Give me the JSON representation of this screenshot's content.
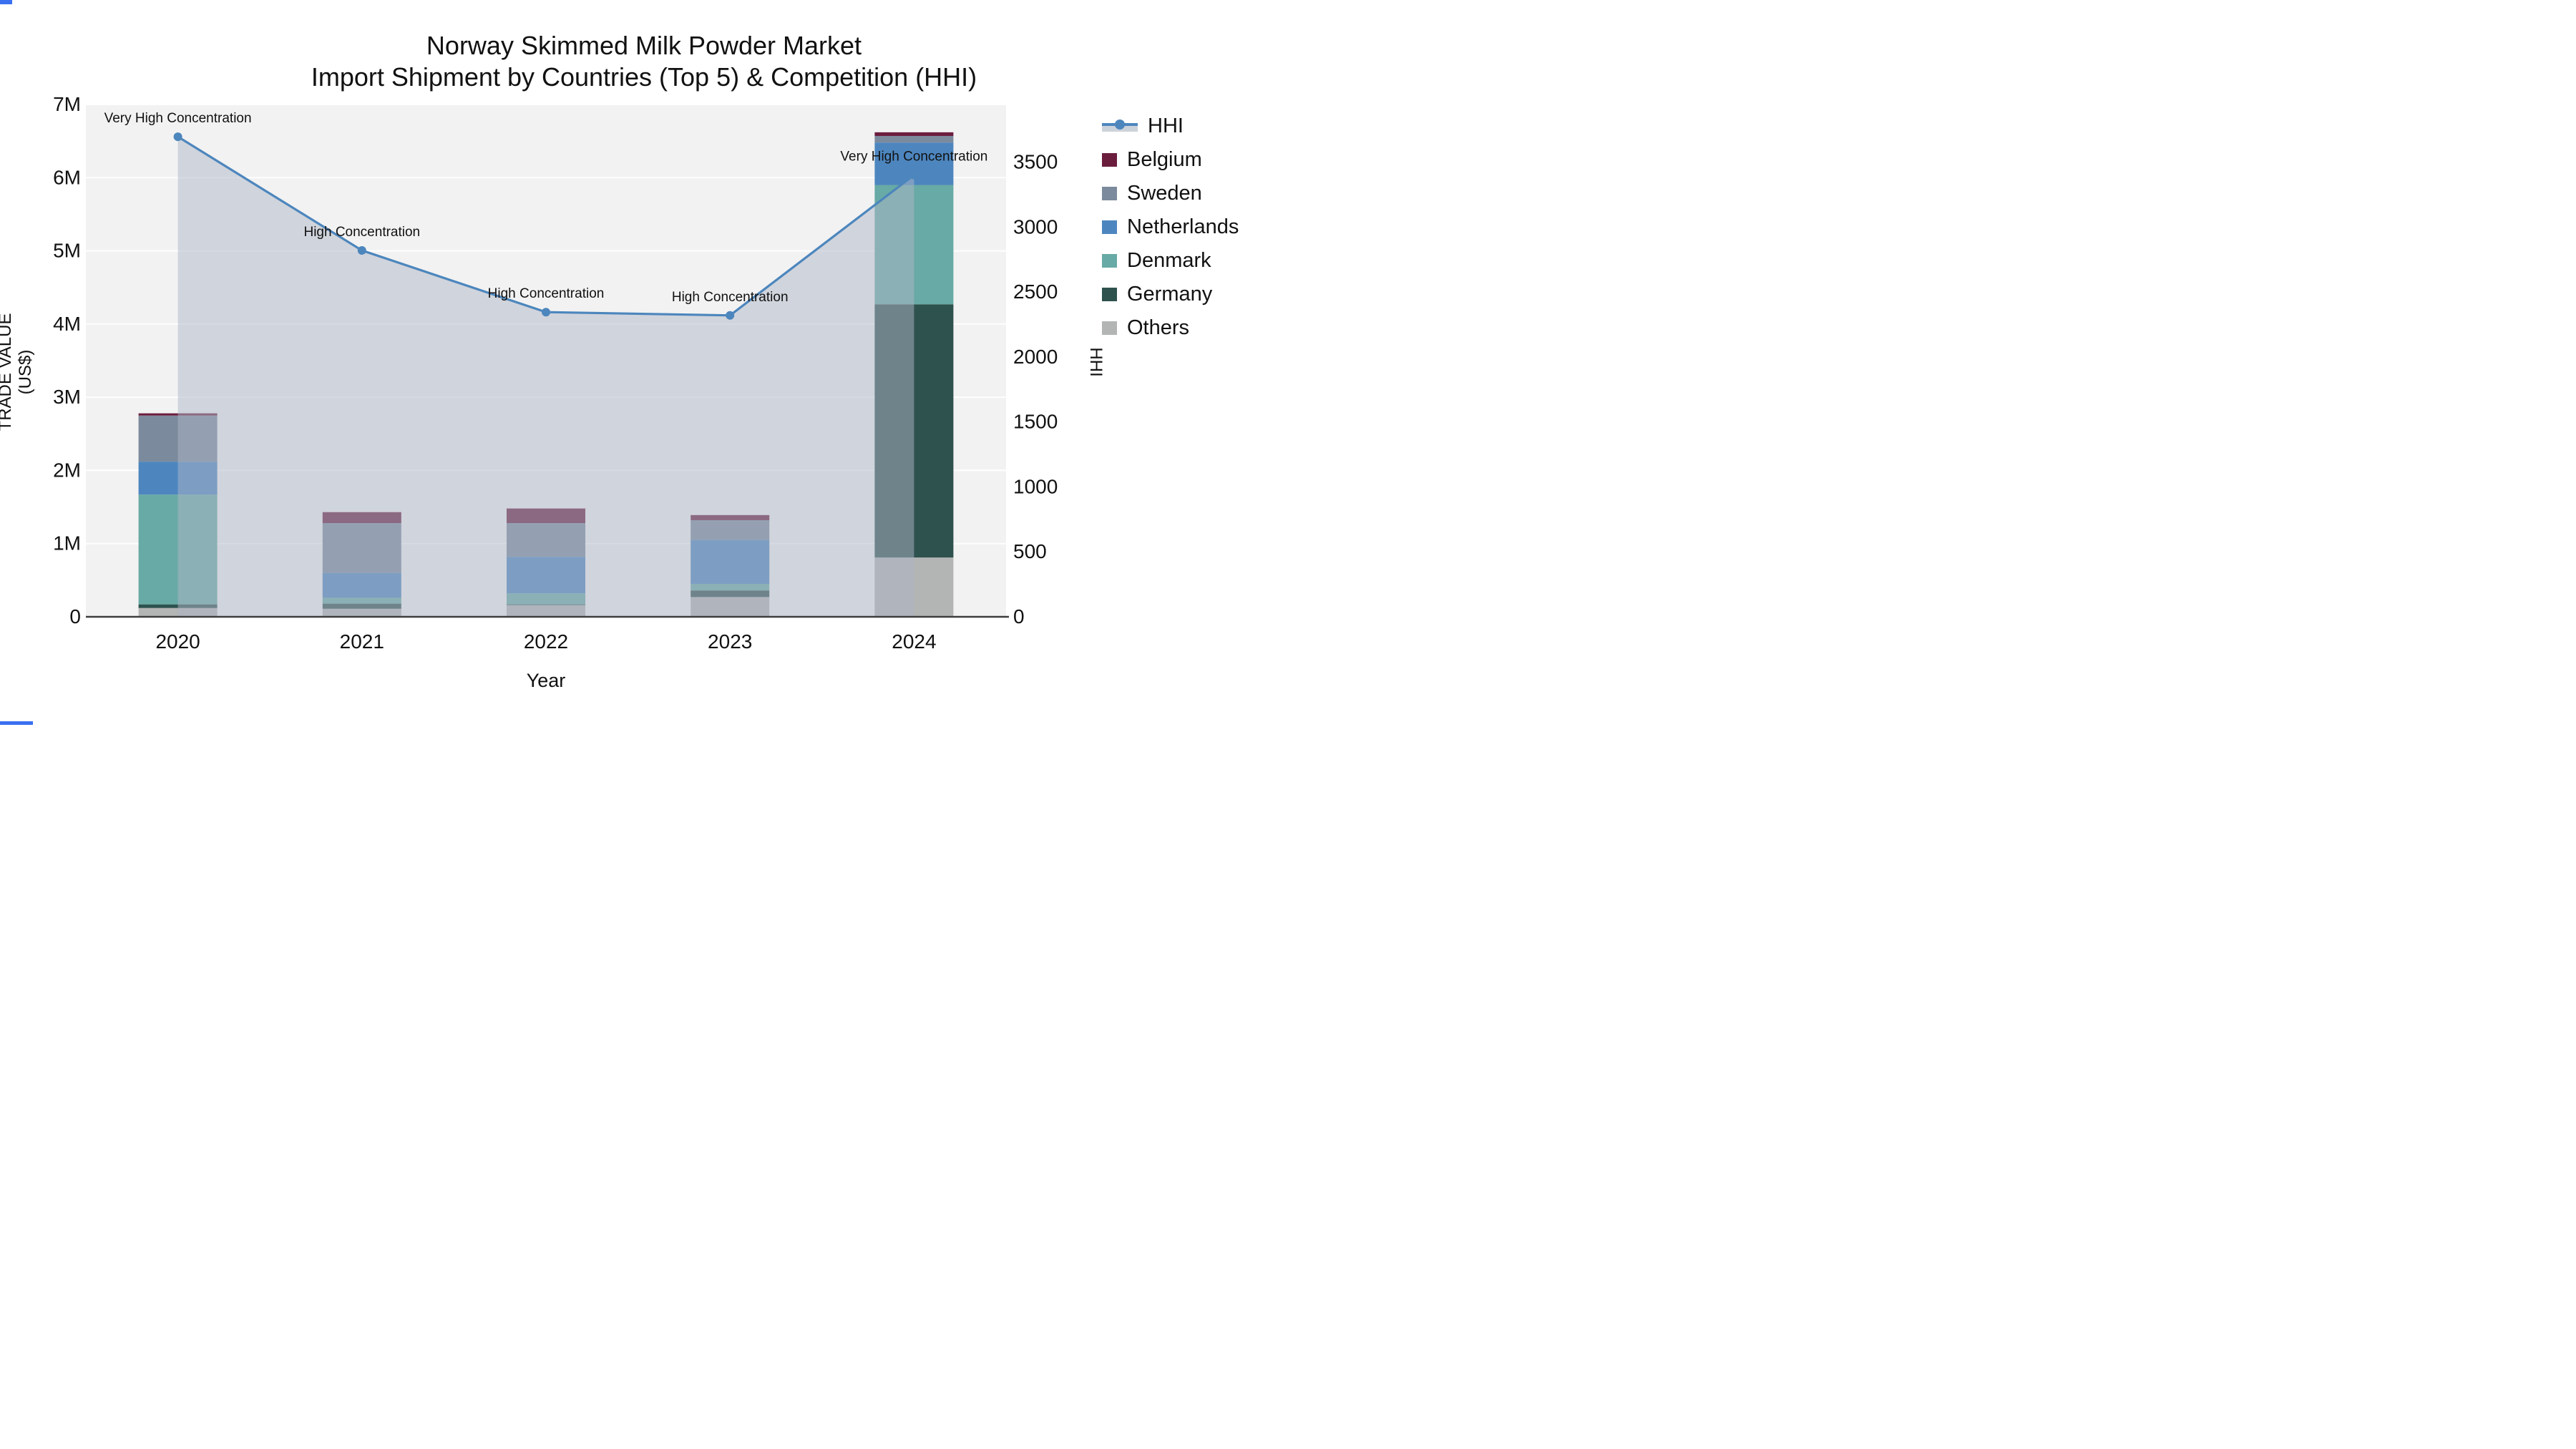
{
  "title": {
    "line1": "Norway Skimmed Milk Powder Market",
    "line2": "Import Shipment by Countries (Top 5) & Competition (HHI)"
  },
  "axes": {
    "left": {
      "title": "TRADE VALUE (US$)",
      "tick_labels": [
        "0",
        "1M",
        "2M",
        "3M",
        "4M",
        "5M",
        "6M",
        "7M"
      ],
      "range": [
        0,
        7000000
      ]
    },
    "right": {
      "title": "HHI",
      "tick_labels": [
        "0",
        "500",
        "1000",
        "1500",
        "2000",
        "2500",
        "3000",
        "3500"
      ],
      "tick_values": [
        0,
        500,
        1000,
        1500,
        2000,
        2500,
        3000,
        3500
      ],
      "range_at_plot_top": 3943
    },
    "x": {
      "title": "Year"
    }
  },
  "legend": {
    "items": [
      {
        "label": "HHI",
        "type": "line"
      },
      {
        "label": "Belgium",
        "type": "swatch",
        "color": "#6b1d3e"
      },
      {
        "label": "Sweden",
        "type": "swatch",
        "color": "#7b8a9c"
      },
      {
        "label": "Netherlands",
        "type": "swatch",
        "color": "#4d86bf"
      },
      {
        "label": "Denmark",
        "type": "swatch",
        "color": "#68aaa5"
      },
      {
        "label": "Germany",
        "type": "swatch",
        "color": "#2e524e"
      },
      {
        "label": "Others",
        "type": "swatch",
        "color": "#b3b5b4"
      }
    ]
  },
  "chart_data": {
    "type": "bar+line",
    "title": "Norway Skimmed Milk Powder Market — Import Shipment by Countries (Top 5) & Competition (HHI)",
    "categories": [
      "2020",
      "2021",
      "2022",
      "2023",
      "2024"
    ],
    "xlabel": "Year",
    "ylabel": "TRADE VALUE (US$)",
    "y2label": "HHI",
    "ylim": [
      0,
      7000000
    ],
    "y2lim": [
      0,
      3943
    ],
    "grid": "horizontal-1M",
    "legend_position": "right",
    "stack_order_bottom_to_top": [
      "Others",
      "Germany",
      "Denmark",
      "Netherlands",
      "Sweden",
      "Belgium"
    ],
    "series": [
      {
        "name": "Others",
        "color": "#b3b5b4",
        "values": [
          120000,
          110000,
          160000,
          270000,
          810000
        ]
      },
      {
        "name": "Germany",
        "color": "#2e524e",
        "values": [
          50000,
          70000,
          10000,
          90000,
          3460000
        ]
      },
      {
        "name": "Denmark",
        "color": "#68aaa5",
        "values": [
          1500000,
          80000,
          150000,
          90000,
          1630000
        ]
      },
      {
        "name": "Netherlands",
        "color": "#4d86bf",
        "values": [
          450000,
          340000,
          500000,
          600000,
          580000
        ]
      },
      {
        "name": "Sweden",
        "color": "#7b8a9c",
        "values": [
          630000,
          680000,
          460000,
          270000,
          90000
        ]
      },
      {
        "name": "Belgium",
        "color": "#6b1d3e",
        "values": [
          30000,
          150000,
          200000,
          70000,
          50000
        ]
      }
    ],
    "bar_totals": [
      2780000,
      1430000,
      1480000,
      1390000,
      6620000
    ],
    "line": {
      "name": "HHI",
      "color": "#4c86bd",
      "fill_color": "rgba(173,182,198,0.5)",
      "values": [
        3695,
        2820,
        2345,
        2320,
        3400
      ]
    },
    "annotations": [
      {
        "x": "2020",
        "text": "Very High Concentration"
      },
      {
        "x": "2021",
        "text": "High Concentration"
      },
      {
        "x": "2022",
        "text": "High Concentration"
      },
      {
        "x": "2023",
        "text": "High Concentration"
      },
      {
        "x": "2024",
        "text": "Very High Concentration"
      }
    ],
    "plot_background": "#f2f2f2",
    "gridline_color": "rgba(255,255,255,0.9)",
    "axis_line_color": "#3d3d3d"
  },
  "artifacts": {
    "accent_blue": "#3a6ff0"
  }
}
